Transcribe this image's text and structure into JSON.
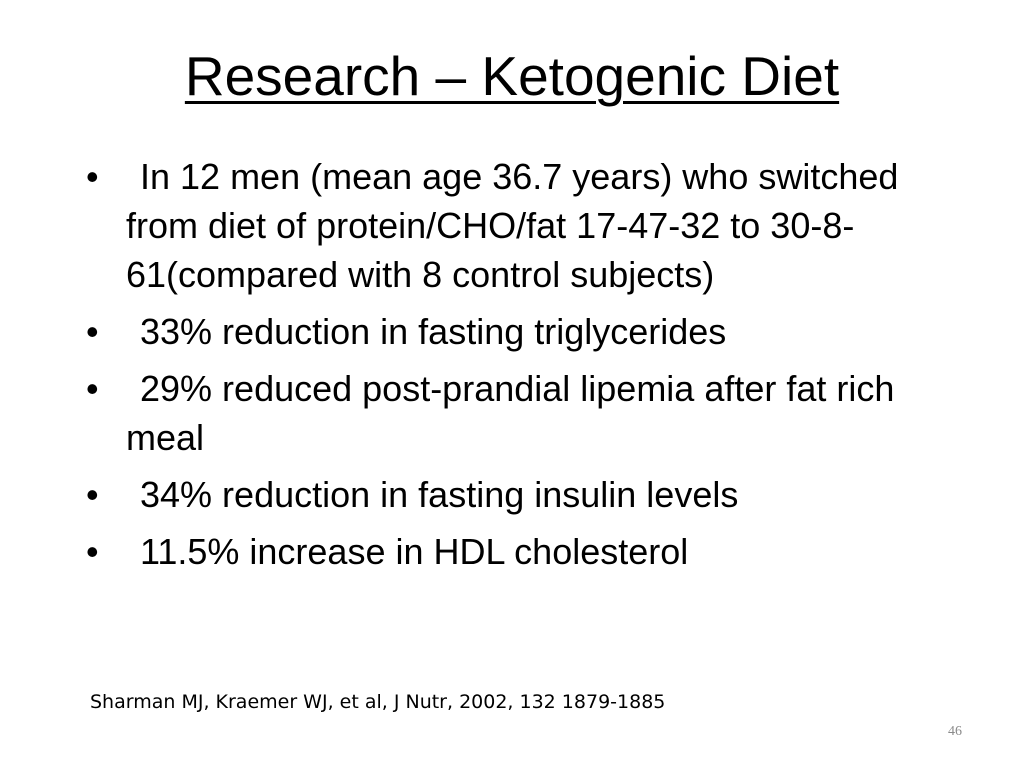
{
  "slide": {
    "title": "Research – Ketogenic Diet",
    "bullets": [
      "In 12 men (mean age 36.7 years) who switched from diet of protein/CHO/fat 17-47-32 to 30-8-61(compared with 8 control subjects)",
      "33% reduction in fasting triglycerides",
      "29% reduced post-prandial lipemia after fat rich meal",
      "34% reduction in fasting insulin levels",
      "11.5% increase in HDL cholesterol"
    ],
    "bullet_symbol": "•",
    "citation": "Sharman MJ, Kraemer WJ, et al, J Nutr, 2002, 132 1879-1885",
    "page_number": "46"
  }
}
